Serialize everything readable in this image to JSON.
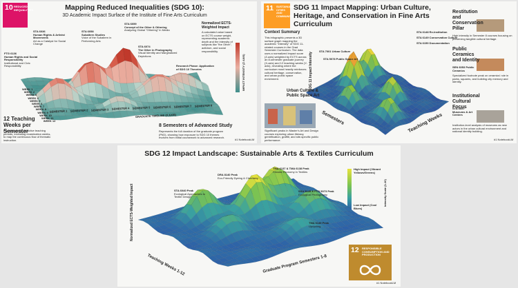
{
  "sdg10": {
    "badge_number": "10",
    "badge_label": "REDUCED INEQUALITIES",
    "title": "Mapping Reduced Inequalities (SDG 10):",
    "subtitle": "3D Academic Impact Surface of the Institute of Fine Arts Curriculum",
    "callouts": [
      {
        "code": "STA 6036",
        "name": "Human Rights & Artivist Movements",
        "note": "Art as a Catalyst for Social Change"
      },
      {
        "code": "STA 6058",
        "name": "Subaltern Studies",
        "note": "Voice of the Subaltern in Performing Arts"
      },
      {
        "code": "STA 6059",
        "name": "Concept of the Other & Othering",
        "note": "Analyzing Global \"Othering\" in Media"
      },
      {
        "code": "FTG 6136",
        "name": "Human Rights and Social Responsibility",
        "note": "Institutional and Civic Responsibility"
      },
      {
        "code": "STA 6074",
        "name": "The Other in Photography",
        "note": "Visual Identity and Marginalized Depictions"
      }
    ],
    "research_phase": "Research Phase: Application of SDG 10 Theories",
    "z_title": "Normalized ECTS-Weighted Impact",
    "z_note": "A calculated value based on ECTS course weight, representing academic depth and the intensity of subjects like \"the Other\", activism, and social responsibility.",
    "z_axis": "IMPACT INTENSITY (Z AXIS)",
    "x_axis": "GRADUATE TIMELINE (X AXIS)",
    "semesters": [
      "SEMESTER 1",
      "SEMESTER 2",
      "SEMESTER 3",
      "SEMESTER 4",
      "SEMESTER 5",
      "SEMESTER 6",
      "SEMESTER 7",
      "SEMESTER 8"
    ],
    "weeks": [
      "WEEK 1",
      "WEEK 2",
      "WEEK 3",
      "WEEK 4",
      "WEEK 5",
      "WEEK 6",
      "WEEK 7",
      "WEEK 8",
      "WEEK 9",
      "WEEK 10",
      "WEEK 11",
      "WEEK 12"
    ],
    "weeks_title": "12 Teaching Weeks per Semester",
    "weeks_note": "Focuses strictly on active teaching periods, excluding examination weeks, to map the continuous flow of thematic instruction.",
    "semesters_title": "8 Semesters of Advanced Study",
    "semesters_note": "Represents the full duration of the graduate program (PhD), showing how exposure to SDG 10 themes evolves from initial coursework to advanced research.",
    "footer": "#1 NotebookLM"
  },
  "sdg11": {
    "badge_number": "11",
    "badge_label": "SUSTAINABLE CITIES AND COMMUNITIES",
    "title": "SDG 11 Impact Mapping: Urban Culture, Heritage, and Conservation in Fine Arts Curriculum",
    "context_title": "Context Summary",
    "context_text": "This infographic presents a 3D surface graph mapping the academic \"intensity\" of SDG 11-related courses in the Grad Semester Curriculum. The data uses a normalized impact score (Z-axis) weighted by ECTS across an 8-semester graduate journey (X-axis) and 12 teaching weeks (Y-axis), revealing where the curriculum most heavily reinforces cultural heritage, conservation, and urban public space enrichment.",
    "course_labels": [
      "STA 6148 Re-Institution",
      "STA 6149 Conservation Culture",
      "STA 6150 Documentation",
      "STA 7001 Urban Culture",
      "STA 5078 Public Space Art"
    ],
    "z_axis": "SDG 11 Impact Intensity",
    "x_axis": "Semesters",
    "y_axis": "Teaching Weeks",
    "pillars": [
      {
        "title": "Restitution and Conservation Pillar",
        "note": "High intensity in Semester 8 courses focusing on preserving tangible cultural heritage."
      },
      {
        "title": "Public Ceramics and Identity",
        "course": "SEN 6053 Public Ceramics",
        "note": "Specialized footnote peak on ceramics' role in parks, squares, and building city memory and identity."
      },
      {
        "title": "Institutional Cultural Focus",
        "course": "STA 6057 Museums & Art Centers",
        "note": "Institution-level analysis of museums as new actors in the urban cultural environment and national identity building."
      }
    ],
    "urban_title": "Urban Culture & Public Space Art",
    "urban_note": "Significant peaks in Master's Art and Design courses exploring urban literacy, gentrification, graffiti, and site-specific public performance.",
    "footer": "#1 NotebookLM"
  },
  "sdg12": {
    "title": "SDG 12 Impact Landscape: Sustainable Arts & Textiles Curriculum",
    "peaks": [
      {
        "name": "TMA 6137 & TMA 6138 Peak",
        "note": "Circular Economy in Textiles"
      },
      {
        "name": "DRA 8140 Peak",
        "note": "Eco-Friendly Dyeing & Chemistry"
      },
      {
        "name": "STA 6040 Peak",
        "note": "Ecological Approaches to Textile Design"
      },
      {
        "name": "SSA 5145 & FTG 5073 Peak",
        "note": "Ecological Photography"
      },
      {
        "name": "TMA 6149 Peak",
        "note": "Upcycling"
      }
    ],
    "legend_high": "High Impact (Vibrant Yellows/Greens)",
    "legend_low": "Low Impact (Cool Blues)",
    "legend_title": "Intensity Scale (1-10)",
    "z_axis": "Normalized ECTS-Weighted Impact",
    "y_axis": "Teaching Weeks 1-12",
    "x_axis": "Graduate Program Semesters 1-8",
    "badge_number": "12",
    "badge_label": "RESPONSIBLE CONSUMPTION AND PRODUCTION",
    "footer": "#1 NotebookLM"
  }
}
